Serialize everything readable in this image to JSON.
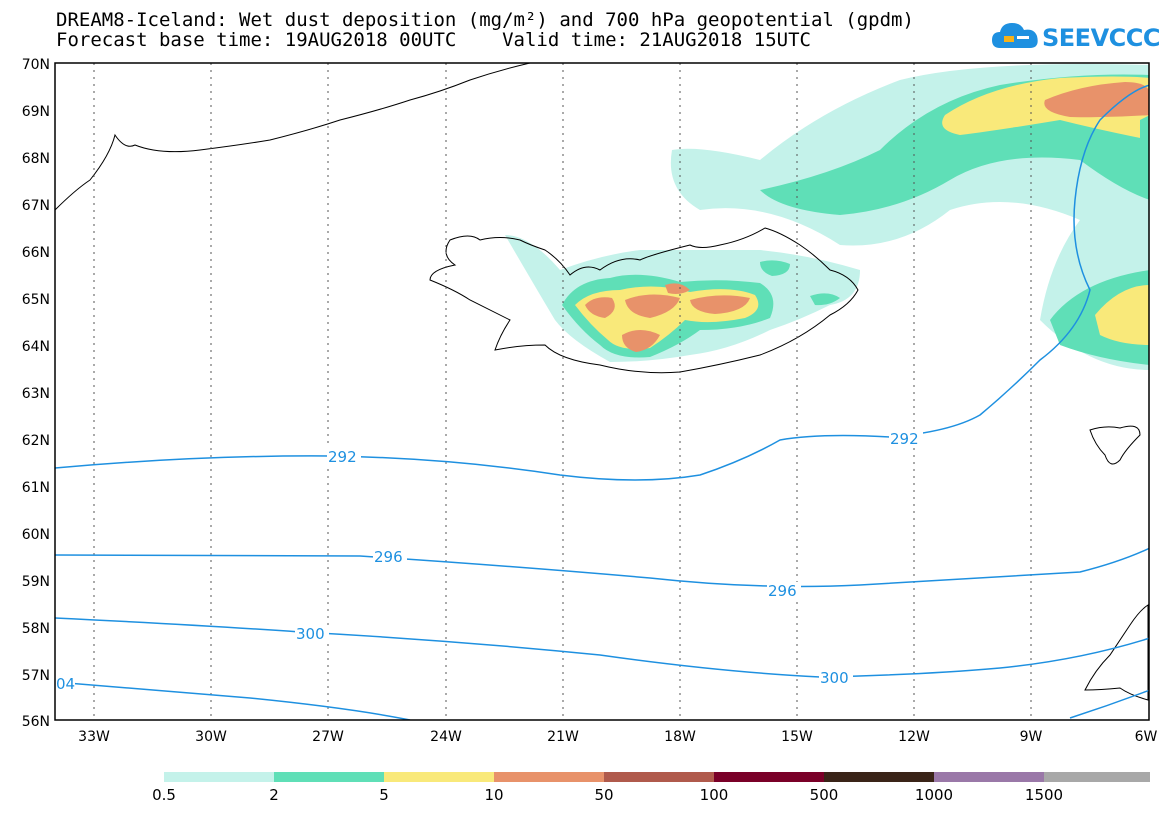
{
  "header": {
    "line1": "DREAM8-Iceland: Wet dust deposition (mg/m²) and 700 hPa geopotential (gpdm)",
    "line2": "Forecast base time: 19AUG2018 00UTC    Valid time: 21AUG2018 15UTC"
  },
  "logo": {
    "text": "SEEVCCC",
    "icon": "cloud-icon"
  },
  "axes": {
    "lat_labels": [
      "70N",
      "69N",
      "68N",
      "67N",
      "66N",
      "65N",
      "64N",
      "63N",
      "62N",
      "61N",
      "60N",
      "59N",
      "58N",
      "57N",
      "56N"
    ],
    "lon_labels": [
      "33W",
      "30W",
      "27W",
      "24W",
      "21W",
      "18W",
      "15W",
      "12W",
      "9W",
      "6W"
    ]
  },
  "contour_labels": [
    {
      "value": "292",
      "id": "c292a"
    },
    {
      "value": "292",
      "id": "c292b"
    },
    {
      "value": "296",
      "id": "c296a"
    },
    {
      "value": "296",
      "id": "c296b"
    },
    {
      "value": "300",
      "id": "c300a"
    },
    {
      "value": "300",
      "id": "c300b"
    },
    {
      "value": "04",
      "id": "c304"
    }
  ],
  "colorbar": {
    "labels": [
      "0.5",
      "2",
      "5",
      "10",
      "50",
      "100",
      "500",
      "1000",
      "1500"
    ],
    "colors": [
      "#c4f2ea",
      "#5fdfb7",
      "#f9e97a",
      "#e8926a",
      "#b05a4c",
      "#7a0028",
      "#3a2418",
      "#9a78a8",
      "#a8a8a8"
    ]
  }
}
